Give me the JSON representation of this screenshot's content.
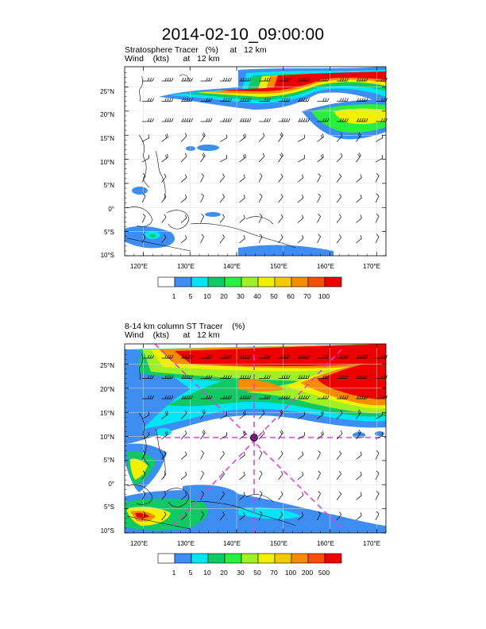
{
  "title": "2014-02-10_09:00:00",
  "panels": [
    {
      "label_line1": "Stratosphere Tracer   (%)     at   12 km",
      "label_line2": "Wind    (kts)      at   12 km",
      "lat_labels": [
        "25°N",
        "20°N",
        "15°N",
        "10°N",
        "5°N",
        "0°",
        "5°S",
        "10°S"
      ],
      "lon_labels": [
        "120°E",
        "130°E",
        "140°E",
        "150°E",
        "160°E",
        "170°E"
      ],
      "colorbar_labels": [
        "1",
        "5",
        "10",
        "20",
        "30",
        "40",
        "50",
        "60",
        "70",
        "100"
      ]
    },
    {
      "label_line1": "8-14 km column ST Tracer    (%)",
      "label_line2": "Wind    (kts)      at   12 km",
      "lat_labels": [
        "25°N",
        "20°N",
        "15°N",
        "10°N",
        "5°N",
        "0°",
        "5°S",
        "10°S"
      ],
      "lon_labels": [
        "120°E",
        "130°E",
        "140°E",
        "150°E",
        "160°E",
        "170°E"
      ],
      "colorbar_labels": [
        "1",
        "5",
        "10",
        "20",
        "30",
        "50",
        "70",
        "100",
        "200",
        "500"
      ]
    }
  ],
  "colors": {
    "c1": "#ffffff",
    "c2": "#3d8ef0",
    "c3": "#00e5f5",
    "c4": "#10c864",
    "c5": "#28f03c",
    "c6": "#a0f028",
    "c7": "#f0f000",
    "c8": "#f5c800",
    "c9": "#f58c00",
    "c10": "#f55000",
    "c11": "#ee0000",
    "storm_track": "#e040e0"
  }
}
